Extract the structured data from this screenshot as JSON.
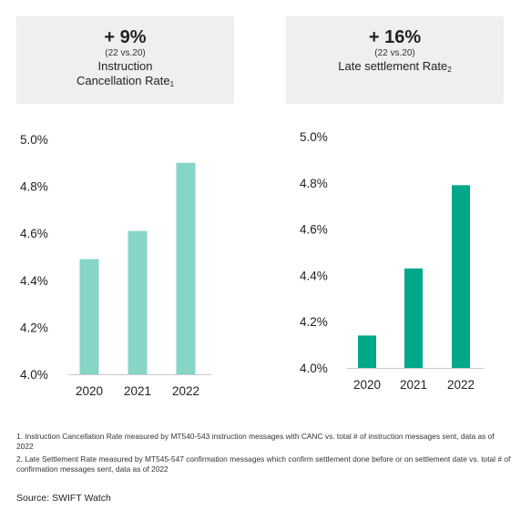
{
  "kpis": [
    {
      "change": "+ 9%",
      "period": "(22 vs.20)",
      "label_line1": "Instruction",
      "label_line2": "Cancellation Rate",
      "footnote_ref": "1"
    },
    {
      "change": "+ 16%",
      "period": "(22 vs.20)",
      "label_line1": "Late settlement Rate",
      "footnote_ref": "2"
    }
  ],
  "chart_data": [
    {
      "type": "bar",
      "title": "Instruction Cancellation Rate",
      "categories": [
        "2020",
        "2021",
        "2022"
      ],
      "values": [
        4.49,
        4.61,
        4.9
      ],
      "ylim": [
        4.0,
        5.0
      ],
      "yticks": [
        4.0,
        4.2,
        4.4,
        4.6,
        4.8,
        5.0
      ],
      "ytick_labels": [
        "4.0%",
        "4.2%",
        "4.4%",
        "4.6%",
        "4.8%",
        "5.0%"
      ],
      "color": "#86d5c7",
      "grid": false
    },
    {
      "type": "bar",
      "title": "Late settlement Rate",
      "categories": [
        "2020",
        "2021",
        "2022"
      ],
      "values": [
        4.14,
        4.43,
        4.79
      ],
      "ylim": [
        4.0,
        5.0
      ],
      "yticks": [
        4.0,
        4.2,
        4.4,
        4.6,
        4.8,
        5.0
      ],
      "ytick_labels": [
        "4.0%",
        "4.2%",
        "4.4%",
        "4.6%",
        "4.8%",
        "5.0%"
      ],
      "color": "#00a88a",
      "grid": false
    }
  ],
  "footnotes": [
    "1. Instruction Cancellation Rate measured by MT540-543 instruction messages with CANC vs. total # of instruction messages sent, data as of 2022",
    "2. Late Settlement Rate measured by MT545-547 confirmation messages which confirm settlement done before or on settlement date vs. total # of confirmation messages sent, data as of 2022"
  ],
  "source": "Source: SWIFT Watch"
}
